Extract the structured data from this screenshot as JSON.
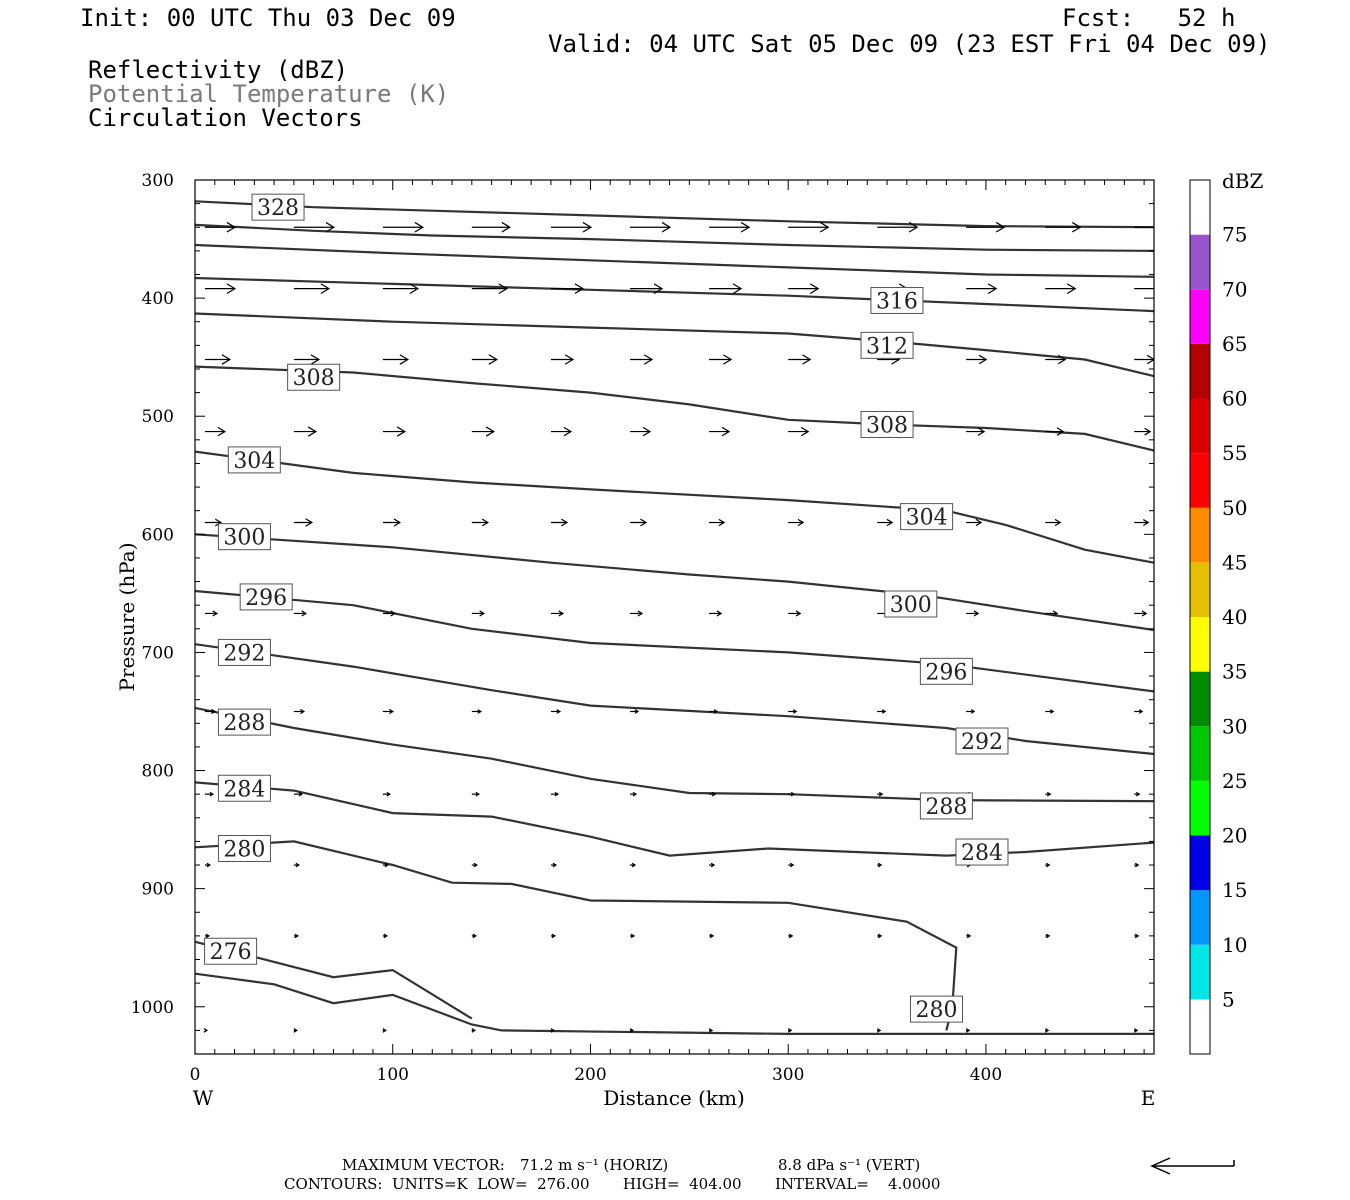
{
  "header": {
    "init": "Init: 00 UTC Thu 03 Dec 09",
    "fcst": "Fcst:   52 h",
    "valid": "Valid: 04 UTC Sat 05 Dec 09 (23 EST Fri 04 Dec 09)",
    "field1": "Reflectivity (dBZ)",
    "field2": "Potential Temperature (K)",
    "field3": "Circulation Vectors"
  },
  "footer": {
    "max_vector_label": "MAXIMUM VECTOR:",
    "max_horiz": "71.2 m s⁻¹ (HORIZ)",
    "max_vert": "8.8 dPa s⁻¹ (VERT)",
    "contours": "CONTOURS:  UNITS=K  LOW=  276.00       HIGH=  404.00       INTERVAL=    4.0000"
  },
  "axes": {
    "xlabel": "Distance (km)",
    "ylabel": "Pressure (hPa)",
    "west": "W",
    "east": "E"
  },
  "colors": {
    "contour": "#333333",
    "vector": "#000000"
  },
  "chart_data": {
    "type": "line",
    "title": "",
    "xlabel": "Distance (km)",
    "ylabel": "Pressure (hPa)",
    "xlim": [
      0,
      485
    ],
    "ylim": [
      1040,
      300
    ],
    "x_ticks": [
      0,
      100,
      200,
      300,
      400
    ],
    "y_ticks": [
      300,
      400,
      500,
      600,
      700,
      800,
      900,
      1000
    ],
    "grid": false,
    "series": [
      {
        "name": "328",
        "values": [
          [
            0,
            318
          ],
          [
            60,
            323
          ],
          [
            120,
            326
          ],
          [
            200,
            330
          ],
          [
            300,
            335
          ],
          [
            400,
            339
          ],
          [
            485,
            340
          ]
        ]
      },
      {
        "name": "",
        "values": [
          [
            0,
            338
          ],
          [
            60,
            343
          ],
          [
            120,
            347
          ],
          [
            200,
            350
          ],
          [
            300,
            355
          ],
          [
            400,
            359
          ],
          [
            485,
            360
          ]
        ]
      },
      {
        "name": "",
        "values": [
          [
            0,
            355
          ],
          [
            100,
            362
          ],
          [
            200,
            368
          ],
          [
            300,
            374
          ],
          [
            400,
            380
          ],
          [
            485,
            382
          ]
        ]
      },
      {
        "name": "",
        "values": [
          [
            0,
            383
          ],
          [
            100,
            388
          ],
          [
            200,
            393
          ],
          [
            300,
            398
          ],
          [
            400,
            405
          ],
          [
            485,
            411
          ]
        ]
      },
      {
        "name": "312",
        "values": [
          [
            0,
            413
          ],
          [
            100,
            420
          ],
          [
            200,
            425
          ],
          [
            300,
            430
          ],
          [
            360,
            438
          ],
          [
            400,
            444
          ],
          [
            450,
            452
          ],
          [
            485,
            466
          ]
        ]
      },
      {
        "name": "308",
        "values": [
          [
            0,
            458
          ],
          [
            80,
            463
          ],
          [
            140,
            472
          ],
          [
            200,
            480
          ],
          [
            250,
            490
          ],
          [
            300,
            503
          ],
          [
            350,
            507
          ],
          [
            400,
            510
          ],
          [
            450,
            515
          ],
          [
            485,
            529
          ]
        ]
      },
      {
        "name": "304",
        "values": [
          [
            0,
            530
          ],
          [
            80,
            548
          ],
          [
            140,
            556
          ],
          [
            200,
            562
          ],
          [
            300,
            571
          ],
          [
            380,
            580
          ],
          [
            410,
            592
          ],
          [
            450,
            613
          ],
          [
            485,
            624
          ]
        ]
      },
      {
        "name": "300",
        "values": [
          [
            0,
            600
          ],
          [
            100,
            611
          ],
          [
            180,
            624
          ],
          [
            250,
            634
          ],
          [
            300,
            640
          ],
          [
            370,
            652
          ],
          [
            420,
            665
          ],
          [
            485,
            681
          ]
        ]
      },
      {
        "name": "296",
        "values": [
          [
            0,
            648
          ],
          [
            80,
            660
          ],
          [
            140,
            680
          ],
          [
            200,
            692
          ],
          [
            300,
            700
          ],
          [
            380,
            710
          ],
          [
            485,
            733
          ]
        ]
      },
      {
        "name": "292",
        "values": [
          [
            0,
            693
          ],
          [
            80,
            712
          ],
          [
            150,
            732
          ],
          [
            200,
            745
          ],
          [
            300,
            754
          ],
          [
            380,
            764
          ],
          [
            420,
            775
          ],
          [
            485,
            786
          ]
        ]
      },
      {
        "name": "288",
        "values": [
          [
            0,
            747
          ],
          [
            50,
            764
          ],
          [
            100,
            778
          ],
          [
            150,
            790
          ],
          [
            200,
            807
          ],
          [
            250,
            819
          ],
          [
            300,
            820
          ],
          [
            380,
            825
          ],
          [
            485,
            826
          ]
        ]
      },
      {
        "name": "284",
        "values": [
          [
            0,
            810
          ],
          [
            50,
            817
          ],
          [
            100,
            836
          ],
          [
            150,
            839
          ],
          [
            200,
            856
          ],
          [
            240,
            872
          ],
          [
            290,
            866
          ],
          [
            380,
            872
          ],
          [
            420,
            869
          ],
          [
            485,
            861
          ]
        ]
      },
      {
        "name": "280",
        "values": [
          [
            0,
            865
          ],
          [
            50,
            860
          ],
          [
            80,
            872
          ],
          [
            100,
            880
          ],
          [
            130,
            895
          ],
          [
            160,
            896
          ],
          [
            200,
            910
          ],
          [
            300,
            912
          ],
          [
            360,
            928
          ],
          [
            385,
            950
          ],
          [
            383,
            1000
          ],
          [
            380,
            1020
          ]
        ]
      },
      {
        "name": "276",
        "values": [
          [
            0,
            945
          ],
          [
            40,
            962
          ],
          [
            70,
            975
          ],
          [
            100,
            969
          ],
          [
            140,
            1010
          ]
        ]
      },
      {
        "name": "",
        "values": [
          [
            0,
            972
          ],
          [
            40,
            981
          ],
          [
            70,
            997
          ],
          [
            100,
            990
          ],
          [
            140,
            1015
          ],
          [
            155,
            1020
          ],
          [
            300,
            1023
          ],
          [
            485,
            1023
          ]
        ]
      }
    ],
    "contour_labels": [
      {
        "text": "328",
        "x": 42,
        "p": 323
      },
      {
        "text": "316",
        "x": 355,
        "p": 402
      },
      {
        "text": "312",
        "x": 350,
        "p": 440
      },
      {
        "text": "308",
        "x": 60,
        "p": 467
      },
      {
        "text": "308",
        "x": 350,
        "p": 507
      },
      {
        "text": "304",
        "x": 30,
        "p": 537
      },
      {
        "text": "304",
        "x": 370,
        "p": 585
      },
      {
        "text": "300",
        "x": 25,
        "p": 602
      },
      {
        "text": "300",
        "x": 362,
        "p": 659
      },
      {
        "text": "296",
        "x": 36,
        "p": 653
      },
      {
        "text": "296",
        "x": 380,
        "p": 716
      },
      {
        "text": "292",
        "x": 25,
        "p": 700
      },
      {
        "text": "292",
        "x": 398,
        "p": 775
      },
      {
        "text": "288",
        "x": 25,
        "p": 759
      },
      {
        "text": "288",
        "x": 380,
        "p": 830
      },
      {
        "text": "284",
        "x": 25,
        "p": 815
      },
      {
        "text": "284",
        "x": 398,
        "p": 869
      },
      {
        "text": "280",
        "x": 25,
        "p": 866
      },
      {
        "text": "280",
        "x": 375,
        "p": 1002
      },
      {
        "text": "276",
        "x": 18,
        "p": 953
      }
    ],
    "vectors": {
      "columns": [
        5,
        50,
        95,
        140,
        180,
        220,
        260,
        300,
        345,
        390,
        430,
        475
      ],
      "levels": [
        {
          "p": 340,
          "u": [
            30,
            40,
            40,
            38,
            40,
            40,
            40,
            40,
            40,
            38,
            35,
            35
          ]
        },
        {
          "p": 392,
          "u": [
            30,
            35,
            35,
            35,
            32,
            32,
            32,
            30,
            30,
            30,
            30,
            30
          ]
        },
        {
          "p": 452,
          "u": [
            25,
            25,
            25,
            25,
            22,
            22,
            22,
            22,
            22,
            20,
            20,
            20
          ]
        },
        {
          "p": 513,
          "u": [
            20,
            22,
            22,
            22,
            20,
            20,
            20,
            20,
            20,
            18,
            18,
            16
          ]
        },
        {
          "p": 590,
          "u": [
            16,
            18,
            17,
            16,
            16,
            16,
            15,
            15,
            15,
            15,
            15,
            14
          ]
        },
        {
          "p": 667,
          "u": [
            12,
            12,
            12,
            12,
            12,
            12,
            12,
            12,
            12,
            12,
            12,
            12
          ]
        },
        {
          "p": 750,
          "u": [
            10,
            10,
            10,
            9,
            9,
            8,
            8,
            8,
            8,
            8,
            8,
            8
          ]
        },
        {
          "p": 820,
          "u": [
            8,
            8,
            7,
            7,
            7,
            6,
            6,
            6,
            5,
            5,
            5,
            5
          ]
        },
        {
          "p": 880,
          "u": [
            5,
            5,
            5,
            5,
            5,
            5,
            5,
            5,
            4,
            4,
            4,
            4
          ]
        },
        {
          "p": 940,
          "u": [
            4,
            4,
            4,
            4,
            4,
            4,
            4,
            4,
            4,
            4,
            4,
            4
          ]
        },
        {
          "p": 1020,
          "u": [
            2,
            3,
            3,
            3,
            3,
            3,
            3,
            3,
            3,
            3,
            3,
            3
          ]
        }
      ]
    }
  },
  "colorbar": {
    "unit": "dBZ",
    "levels": [
      "5",
      "10",
      "15",
      "20",
      "25",
      "30",
      "35",
      "40",
      "45",
      "50",
      "55",
      "60",
      "65",
      "70",
      "75"
    ],
    "colors": [
      "#ffffff",
      "#00e5e5",
      "#0096ff",
      "#0000e6",
      "#00ff00",
      "#00c800",
      "#008c00",
      "#ffff00",
      "#e6c000",
      "#ff8c00",
      "#ff0000",
      "#dc0000",
      "#b40000",
      "#ff00ff",
      "#9955cc",
      "#ffffff"
    ]
  }
}
